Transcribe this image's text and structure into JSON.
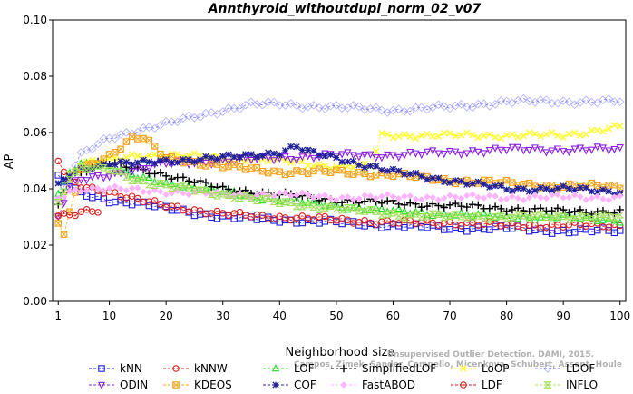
{
  "chart_data": {
    "type": "line",
    "title": "Annthyroid_withoutdupl_norm_02_v07",
    "xlabel": "Neighborhood size",
    "ylabel": "AP",
    "xlim": [
      0,
      101
    ],
    "ylim": [
      0.0,
      0.1
    ],
    "x_ticks": [
      1,
      10,
      20,
      30,
      40,
      50,
      60,
      70,
      80,
      90,
      100
    ],
    "y_ticks": [
      "0.00",
      "0.02",
      "0.04",
      "0.06",
      "0.08",
      "0.10"
    ],
    "grid": false,
    "legend_position": "bottom",
    "credit": "Campos, Zimek, Sander, Campello, Micenkova, Schubert, Assent, Houle",
    "credit_extra": "Unsupervised Outlier Detection. DAMI, 2015.",
    "series": [
      {
        "name": "kNN",
        "color": "#1f1fdd",
        "marker": "square",
        "points": [
          [
            1,
            0.044
          ],
          [
            3,
            0.041
          ],
          [
            5,
            0.038
          ],
          [
            10,
            0.036
          ],
          [
            15,
            0.035
          ],
          [
            20,
            0.033
          ],
          [
            30,
            0.03
          ],
          [
            40,
            0.029
          ],
          [
            50,
            0.028
          ],
          [
            60,
            0.027
          ],
          [
            70,
            0.026
          ],
          [
            80,
            0.026
          ],
          [
            90,
            0.025
          ],
          [
            100,
            0.025
          ]
        ]
      },
      {
        "name": "kNNW",
        "color": "#dd1f1f",
        "marker": "circle",
        "points": [
          [
            1,
            0.05
          ],
          [
            2,
            0.046
          ],
          [
            3,
            0.043
          ],
          [
            5,
            0.041
          ],
          [
            10,
            0.039
          ],
          [
            15,
            0.036
          ],
          [
            20,
            0.034
          ],
          [
            30,
            0.031
          ],
          [
            40,
            0.03
          ],
          [
            50,
            0.029
          ],
          [
            60,
            0.028
          ],
          [
            70,
            0.028
          ],
          [
            80,
            0.027
          ],
          [
            90,
            0.027
          ],
          [
            100,
            0.027
          ]
        ]
      },
      {
        "name": "LOF",
        "color": "#22dd22",
        "marker": "triangle-up",
        "points": [
          [
            1,
            0.038
          ],
          [
            3,
            0.046
          ],
          [
            5,
            0.049
          ],
          [
            8,
            0.049
          ],
          [
            10,
            0.048
          ],
          [
            15,
            0.044
          ],
          [
            20,
            0.042
          ],
          [
            30,
            0.039
          ],
          [
            40,
            0.036
          ],
          [
            50,
            0.034
          ],
          [
            60,
            0.032
          ],
          [
            70,
            0.031
          ],
          [
            80,
            0.03
          ],
          [
            90,
            0.03
          ],
          [
            100,
            0.029
          ]
        ]
      },
      {
        "name": "SimplifiedLOF",
        "color": "#000000",
        "marker": "plus",
        "points": [
          [
            1,
            0.034
          ],
          [
            3,
            0.045
          ],
          [
            5,
            0.046
          ],
          [
            8,
            0.049
          ],
          [
            10,
            0.049
          ],
          [
            15,
            0.047
          ],
          [
            20,
            0.045
          ],
          [
            30,
            0.04
          ],
          [
            40,
            0.038
          ],
          [
            50,
            0.036
          ],
          [
            60,
            0.035
          ],
          [
            70,
            0.034
          ],
          [
            80,
            0.033
          ],
          [
            90,
            0.032
          ],
          [
            100,
            0.032
          ]
        ]
      },
      {
        "name": "LoOP",
        "color": "#ffff22",
        "marker": "x",
        "points": [
          [
            1,
            0.032
          ],
          [
            3,
            0.045
          ],
          [
            5,
            0.049
          ],
          [
            10,
            0.05
          ],
          [
            15,
            0.052
          ],
          [
            20,
            0.052
          ],
          [
            30,
            0.051
          ],
          [
            40,
            0.05
          ],
          [
            50,
            0.048
          ],
          [
            56,
            0.048
          ],
          [
            58,
            0.059
          ],
          [
            70,
            0.059
          ],
          [
            80,
            0.059
          ],
          [
            90,
            0.059
          ],
          [
            100,
            0.062
          ]
        ]
      },
      {
        "name": "LDOF",
        "color": "#cccccc",
        "marker": "diamond",
        "stroke": "#7a7aff",
        "points": [
          [
            1,
            0.036
          ],
          [
            3,
            0.045
          ],
          [
            5,
            0.052
          ],
          [
            10,
            0.058
          ],
          [
            15,
            0.061
          ],
          [
            20,
            0.063
          ],
          [
            30,
            0.068
          ],
          [
            35,
            0.07
          ],
          [
            40,
            0.07
          ],
          [
            50,
            0.069
          ],
          [
            60,
            0.068
          ],
          [
            70,
            0.069
          ],
          [
            80,
            0.071
          ],
          [
            90,
            0.071
          ],
          [
            100,
            0.071
          ]
        ]
      },
      {
        "name": "ODIN",
        "color": "#8a1fdd",
        "marker": "triangle-down",
        "points": [
          [
            1,
            0.03
          ],
          [
            3,
            0.041
          ],
          [
            5,
            0.043
          ],
          [
            10,
            0.045
          ],
          [
            15,
            0.047
          ],
          [
            20,
            0.049
          ],
          [
            30,
            0.05
          ],
          [
            40,
            0.051
          ],
          [
            50,
            0.052
          ],
          [
            60,
            0.052
          ],
          [
            70,
            0.053
          ],
          [
            80,
            0.054
          ],
          [
            90,
            0.054
          ],
          [
            100,
            0.054
          ]
        ]
      },
      {
        "name": "KDEOS",
        "color": "#f5a31a",
        "marker": "square-x",
        "points": [
          [
            1,
            0.028
          ],
          [
            2,
            0.023
          ],
          [
            3,
            0.031
          ],
          [
            5,
            0.047
          ],
          [
            10,
            0.052
          ],
          [
            14,
            0.058
          ],
          [
            16,
            0.058
          ],
          [
            20,
            0.051
          ],
          [
            30,
            0.048
          ],
          [
            40,
            0.046
          ],
          [
            50,
            0.046
          ],
          [
            60,
            0.045
          ],
          [
            70,
            0.043
          ],
          [
            80,
            0.042
          ],
          [
            90,
            0.041
          ],
          [
            100,
            0.041
          ]
        ]
      },
      {
        "name": "COF",
        "color": "#1f1f99",
        "marker": "star",
        "points": [
          [
            1,
            0.041
          ],
          [
            3,
            0.045
          ],
          [
            5,
            0.047
          ],
          [
            10,
            0.049
          ],
          [
            15,
            0.049
          ],
          [
            20,
            0.05
          ],
          [
            30,
            0.051
          ],
          [
            40,
            0.053
          ],
          [
            43,
            0.055
          ],
          [
            45,
            0.053
          ],
          [
            50,
            0.051
          ],
          [
            60,
            0.046
          ],
          [
            70,
            0.043
          ],
          [
            80,
            0.04
          ],
          [
            90,
            0.04
          ],
          [
            100,
            0.039
          ]
        ]
      },
      {
        "name": "FastABOD",
        "color": "#ffb3ff",
        "marker": "diamond-small",
        "points": [
          [
            1,
            0.037
          ],
          [
            3,
            0.039
          ],
          [
            5,
            0.04
          ],
          [
            10,
            0.04
          ],
          [
            20,
            0.039
          ],
          [
            30,
            0.038
          ],
          [
            40,
            0.038
          ],
          [
            50,
            0.037
          ],
          [
            60,
            0.037
          ],
          [
            70,
            0.037
          ],
          [
            80,
            0.037
          ],
          [
            90,
            0.037
          ],
          [
            100,
            0.037
          ]
        ]
      },
      {
        "name": "LDF",
        "color": "#dd1f1f",
        "marker": "circle-dot",
        "points": [
          [
            1,
            0.031
          ],
          [
            3,
            0.031
          ],
          [
            5,
            0.032
          ],
          [
            8,
            0.032
          ]
        ]
      },
      {
        "name": "INFLO",
        "color": "#a3dd5c",
        "marker": "hourglass",
        "points": [
          [
            1,
            0.035
          ],
          [
            3,
            0.044
          ],
          [
            5,
            0.047
          ],
          [
            10,
            0.047
          ],
          [
            15,
            0.043
          ],
          [
            20,
            0.041
          ],
          [
            30,
            0.038
          ],
          [
            40,
            0.035
          ],
          [
            50,
            0.033
          ],
          [
            60,
            0.031
          ],
          [
            70,
            0.03
          ],
          [
            80,
            0.03
          ],
          [
            90,
            0.03
          ],
          [
            100,
            0.03
          ]
        ]
      }
    ]
  }
}
